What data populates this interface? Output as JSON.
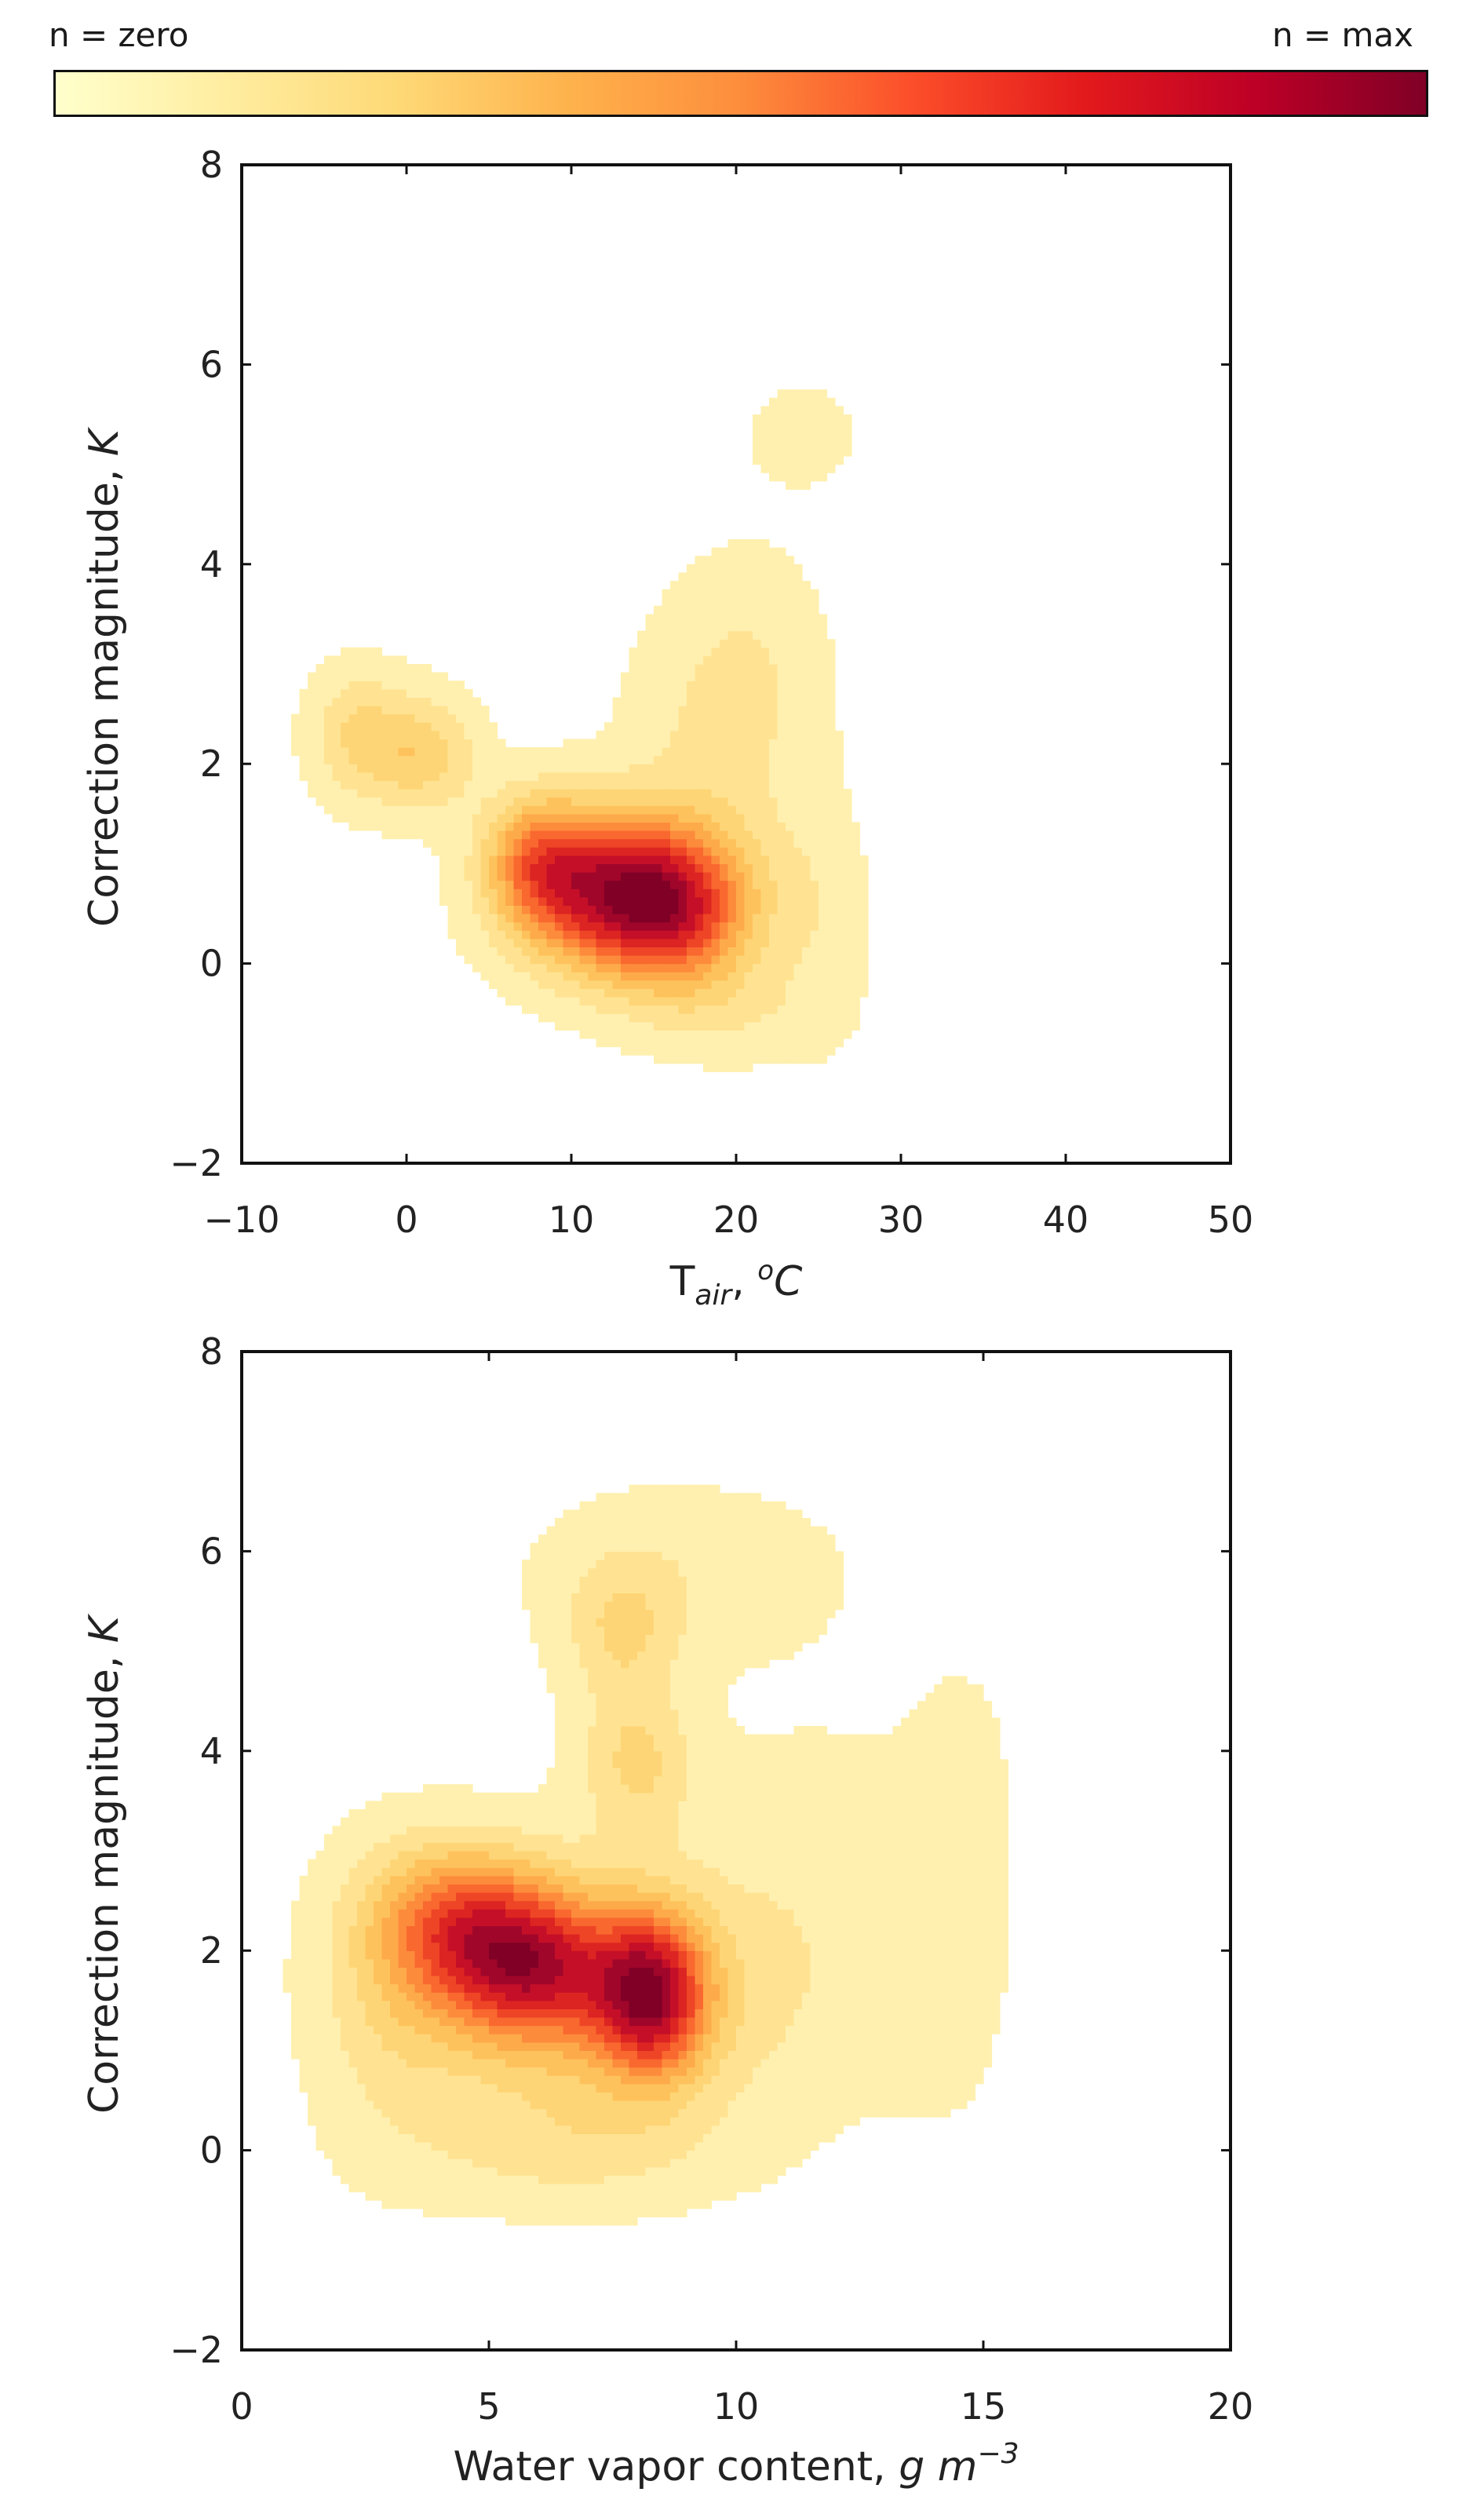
{
  "colorbar": {
    "label_min": "n = zero",
    "label_max": "n = max",
    "colors": [
      "#ffffcc",
      "#ffeda0",
      "#fed976",
      "#feb24c",
      "#fd8d3c",
      "#fc4e2a",
      "#e31a1c",
      "#bd0026",
      "#800026"
    ]
  },
  "level_colors": [
    "#fff0b0",
    "#ffe392",
    "#fed576",
    "#fec25c",
    "#fdaa4a",
    "#fd8b3c",
    "#f9682f",
    "#ee4526",
    "#dc2422",
    "#c50f28",
    "#a0062a",
    "#800026"
  ],
  "chart_data": [
    {
      "type": "heatmap",
      "subtype": "kde-contour",
      "xlabel": "T_air, °C",
      "xlabel_parts": {
        "main": "T",
        "sub": "air",
        "sep": ", ",
        "sup": "o",
        "unit": "C"
      },
      "ylabel": "Correction magnitude, K",
      "ylabel_parts": {
        "main": "Correction magnitude, ",
        "unit": "K"
      },
      "xlim": [
        -10,
        50
      ],
      "ylim": [
        -2,
        8
      ],
      "xticks": [
        -10,
        0,
        10,
        20,
        30,
        40,
        50
      ],
      "xtick_labels": [
        "−10",
        "0",
        "10",
        "20",
        "30",
        "40",
        "50"
      ],
      "yticks": [
        -2,
        0,
        2,
        4,
        6,
        8
      ],
      "ytick_labels": [
        "−2",
        "0",
        "2",
        "4",
        "6",
        "8"
      ],
      "grid": false,
      "kernels": [
        {
          "x": 13.5,
          "y": 0.7,
          "sx": 4.2,
          "sy": 0.55,
          "w": 1.0
        },
        {
          "x": 8.0,
          "y": 1.05,
          "sx": 2.2,
          "sy": 0.45,
          "w": 0.45
        },
        {
          "x": 17.0,
          "y": 0.4,
          "sx": 3.0,
          "sy": 0.5,
          "w": 0.3
        },
        {
          "x": 1.0,
          "y": 2.1,
          "sx": 2.2,
          "sy": 0.4,
          "w": 0.28
        },
        {
          "x": -3.0,
          "y": 2.3,
          "sx": 2.0,
          "sy": 0.45,
          "w": 0.22
        },
        {
          "x": 19.0,
          "y": 2.2,
          "sx": 3.8,
          "sy": 0.9,
          "w": 0.14
        },
        {
          "x": 21.0,
          "y": 3.2,
          "sx": 3.0,
          "sy": 0.7,
          "w": 0.07
        },
        {
          "x": 24.0,
          "y": 5.3,
          "sx": 3.0,
          "sy": 0.45,
          "w": 0.06
        },
        {
          "x": 20.0,
          "y": -0.5,
          "sx": 4.0,
          "sy": 0.35,
          "w": 0.1
        },
        {
          "x": 25.0,
          "y": 0.5,
          "sx": 2.0,
          "sy": 0.8,
          "w": 0.09
        }
      ],
      "peak": {
        "x": 14,
        "y": 0.55
      }
    },
    {
      "type": "heatmap",
      "subtype": "kde-contour",
      "xlabel": "Water vapor content, g m^-3",
      "xlabel_parts": {
        "main": "Water vapor content, ",
        "unit": "g m",
        "sup": "−3"
      },
      "ylabel": "Correction magnitude, K",
      "ylabel_parts": {
        "main": "Correction magnitude, ",
        "unit": "K"
      },
      "xlim": [
        0,
        20
      ],
      "ylim": [
        -2,
        8
      ],
      "xticks": [
        0,
        5,
        10,
        15,
        20
      ],
      "xtick_labels": [
        "0",
        "5",
        "10",
        "15",
        "20"
      ],
      "yticks": [
        -2,
        0,
        2,
        4,
        6,
        8
      ],
      "ytick_labels": [
        "−2",
        "0",
        "2",
        "4",
        "6",
        "8"
      ],
      "grid": false,
      "kernels": [
        {
          "x": 8.3,
          "y": 1.55,
          "sx": 0.75,
          "sy": 0.55,
          "w": 1.0
        },
        {
          "x": 5.8,
          "y": 1.85,
          "sx": 1.3,
          "sy": 0.5,
          "w": 0.85
        },
        {
          "x": 4.4,
          "y": 2.35,
          "sx": 1.2,
          "sy": 0.5,
          "w": 0.6
        },
        {
          "x": 7.0,
          "y": 1.5,
          "sx": 2.5,
          "sy": 0.9,
          "w": 0.4
        },
        {
          "x": 8.0,
          "y": 3.9,
          "sx": 0.8,
          "sy": 0.5,
          "w": 0.3
        },
        {
          "x": 7.7,
          "y": 5.2,
          "sx": 0.8,
          "sy": 0.5,
          "w": 0.26
        },
        {
          "x": 9.0,
          "y": 5.8,
          "sx": 2.2,
          "sy": 0.6,
          "w": 0.12
        },
        {
          "x": 11.5,
          "y": 2.5,
          "sx": 1.8,
          "sy": 1.3,
          "w": 0.1
        },
        {
          "x": 14.3,
          "y": 2.0,
          "sx": 1.0,
          "sy": 1.4,
          "w": 0.07
        },
        {
          "x": 14.6,
          "y": 4.0,
          "sx": 0.7,
          "sy": 0.7,
          "w": 0.05
        },
        {
          "x": 3.0,
          "y": 1.5,
          "sx": 1.0,
          "sy": 1.0,
          "w": 0.18
        },
        {
          "x": 6.5,
          "y": 0.0,
          "sx": 2.2,
          "sy": 0.4,
          "w": 0.15
        }
      ],
      "peak": {
        "x": 8.3,
        "y": 1.5
      }
    }
  ]
}
